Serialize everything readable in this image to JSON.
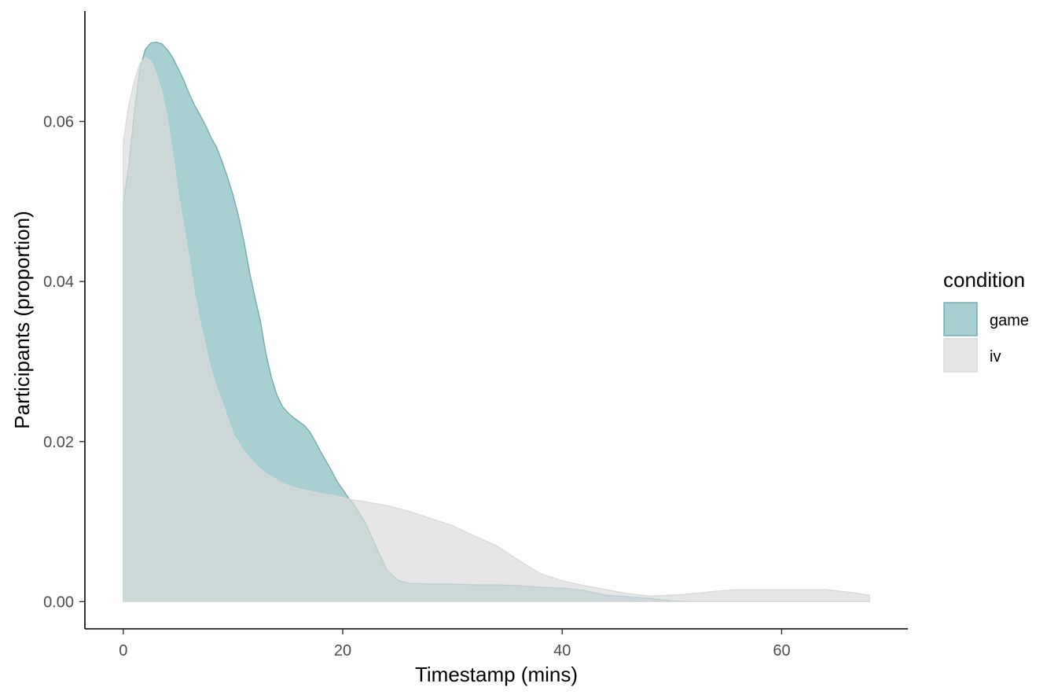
{
  "chart_data": {
    "type": "area",
    "title": "",
    "xlabel": "Timestamp (mins)",
    "ylabel": "Participants (proportion)",
    "xlim": [
      -3.5,
      71.5
    ],
    "ylim": [
      -0.0034,
      0.0738
    ],
    "xticks": [
      0,
      20,
      40,
      60
    ],
    "xtick_labels": [
      "0",
      "20",
      "40",
      "60"
    ],
    "yticks": [
      0.0,
      0.02,
      0.04,
      0.06
    ],
    "ytick_labels": [
      "0.00",
      "0.02",
      "0.04",
      "0.06"
    ],
    "grid": false,
    "legend": {
      "title": "condition",
      "position": "right"
    },
    "series": [
      {
        "name": "game",
        "fill": "#a8cfd1",
        "stroke": "#6aabaf",
        "points": [
          [
            0,
            0.0497
          ],
          [
            0.5,
            0.0545
          ],
          [
            1,
            0.061
          ],
          [
            1.5,
            0.0665
          ],
          [
            2,
            0.069
          ],
          [
            2.5,
            0.0698
          ],
          [
            3,
            0.0699
          ],
          [
            3.5,
            0.0697
          ],
          [
            4,
            0.069
          ],
          [
            4.5,
            0.068
          ],
          [
            5,
            0.0666
          ],
          [
            5.5,
            0.0652
          ],
          [
            6,
            0.0635
          ],
          [
            6.5,
            0.062
          ],
          [
            7,
            0.0608
          ],
          [
            7.5,
            0.0595
          ],
          [
            8,
            0.058
          ],
          [
            8.5,
            0.0568
          ],
          [
            9,
            0.055
          ],
          [
            9.5,
            0.053
          ],
          [
            10,
            0.0508
          ],
          [
            10.5,
            0.0482
          ],
          [
            11,
            0.045
          ],
          [
            11.5,
            0.0412
          ],
          [
            12,
            0.038
          ],
          [
            12.5,
            0.035
          ],
          [
            13,
            0.031
          ],
          [
            13.5,
            0.028
          ],
          [
            14,
            0.0258
          ],
          [
            14.5,
            0.0244
          ],
          [
            15,
            0.0236
          ],
          [
            15.5,
            0.023
          ],
          [
            16,
            0.0225
          ],
          [
            16.5,
            0.022
          ],
          [
            17,
            0.0212
          ],
          [
            17.5,
            0.02
          ],
          [
            18,
            0.0187
          ],
          [
            18.5,
            0.0175
          ],
          [
            19,
            0.0163
          ],
          [
            19.5,
            0.015
          ],
          [
            20,
            0.014
          ],
          [
            20.5,
            0.013
          ],
          [
            21,
            0.0122
          ],
          [
            22,
            0.01
          ],
          [
            23,
            0.007
          ],
          [
            24,
            0.004
          ],
          [
            25,
            0.0027
          ],
          [
            26,
            0.0023
          ],
          [
            28,
            0.0022
          ],
          [
            30,
            0.0022
          ],
          [
            32,
            0.0021
          ],
          [
            34,
            0.0021
          ],
          [
            36,
            0.002
          ],
          [
            38,
            0.0018
          ],
          [
            40,
            0.0017
          ],
          [
            42,
            0.0014
          ],
          [
            44,
            0.0008
          ],
          [
            46,
            0.0006
          ],
          [
            48,
            0.0004
          ],
          [
            50,
            0.0001
          ],
          [
            52,
            0.0
          ],
          [
            55,
            0.0
          ],
          [
            60,
            0.0
          ],
          [
            65,
            0.0
          ],
          [
            68,
            0.0
          ]
        ]
      },
      {
        "name": "iv",
        "fill": "#dbdbdb",
        "fill_opacity": 0.7,
        "stroke": "#d9d9d9",
        "points": [
          [
            0,
            0.0575
          ],
          [
            0.5,
            0.062
          ],
          [
            1,
            0.065
          ],
          [
            1.5,
            0.0672
          ],
          [
            2,
            0.068
          ],
          [
            2.5,
            0.0676
          ],
          [
            3,
            0.066
          ],
          [
            3.5,
            0.0638
          ],
          [
            4,
            0.0605
          ],
          [
            4.5,
            0.056
          ],
          [
            5,
            0.051
          ],
          [
            5.5,
            0.047
          ],
          [
            6,
            0.043
          ],
          [
            6.5,
            0.0385
          ],
          [
            7,
            0.035
          ],
          [
            7.5,
            0.032
          ],
          [
            8,
            0.029
          ],
          [
            8.5,
            0.0268
          ],
          [
            9,
            0.025
          ],
          [
            9.5,
            0.023
          ],
          [
            10,
            0.021
          ],
          [
            11,
            0.0188
          ],
          [
            12,
            0.0172
          ],
          [
            13,
            0.016
          ],
          [
            14,
            0.0152
          ],
          [
            15,
            0.0145
          ],
          [
            16,
            0.0141
          ],
          [
            17,
            0.0138
          ],
          [
            18,
            0.0135
          ],
          [
            19,
            0.0133
          ],
          [
            20,
            0.013
          ],
          [
            21,
            0.0127
          ],
          [
            22,
            0.0125
          ],
          [
            24,
            0.012
          ],
          [
            26,
            0.0113
          ],
          [
            28,
            0.0104
          ],
          [
            30,
            0.0095
          ],
          [
            32,
            0.0082
          ],
          [
            34,
            0.007
          ],
          [
            36,
            0.0052
          ],
          [
            38,
            0.0035
          ],
          [
            40,
            0.0026
          ],
          [
            42,
            0.002
          ],
          [
            44,
            0.0015
          ],
          [
            46,
            0.001
          ],
          [
            48,
            0.0007
          ],
          [
            50,
            0.0008
          ],
          [
            52,
            0.001
          ],
          [
            54,
            0.0013
          ],
          [
            56,
            0.0015
          ],
          [
            58,
            0.0015
          ],
          [
            60,
            0.0015
          ],
          [
            62,
            0.0015
          ],
          [
            64,
            0.0015
          ],
          [
            66,
            0.0012
          ],
          [
            68,
            0.0008
          ]
        ]
      }
    ]
  }
}
